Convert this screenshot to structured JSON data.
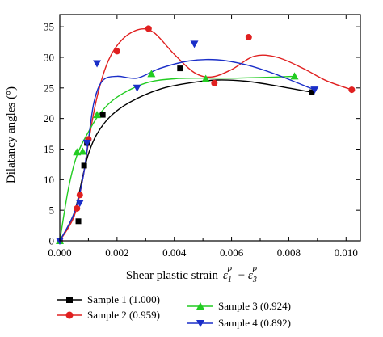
{
  "chart_data": {
    "type": "scatter",
    "xlabel": "Shear plastic strain",
    "xlabel_math": "ε₁ᵖ − ε₃ᵖ",
    "ylabel": "Dilatancy angles (°)",
    "xlim": [
      0.0,
      0.0105
    ],
    "ylim": [
      0,
      37
    ],
    "x_ticks": [
      "0.000",
      "0.002",
      "0.004",
      "0.006",
      "0.008",
      "0.010"
    ],
    "y_ticks": [
      "0",
      "5",
      "10",
      "15",
      "20",
      "25",
      "30",
      "35"
    ],
    "legend_position": "bottom",
    "series": [
      {
        "name": "Sample 1 (1.000)",
        "color": "#000000",
        "marker": "square",
        "points": [
          [
            0.0,
            0.0
          ],
          [
            0.00065,
            3.2
          ],
          [
            0.00085,
            12.3
          ],
          [
            0.00095,
            16.0
          ],
          [
            0.0015,
            20.6
          ],
          [
            0.0042,
            28.2
          ],
          [
            0.0088,
            24.3
          ]
        ],
        "curve": [
          [
            0.0,
            0.0
          ],
          [
            0.0005,
            4.5
          ],
          [
            0.0008,
            10.5
          ],
          [
            0.001,
            14.2
          ],
          [
            0.0013,
            17.5
          ],
          [
            0.0018,
            20.5
          ],
          [
            0.0025,
            22.8
          ],
          [
            0.0035,
            24.8
          ],
          [
            0.0045,
            25.8
          ],
          [
            0.0055,
            26.3
          ],
          [
            0.0065,
            26.1
          ],
          [
            0.0075,
            25.4
          ],
          [
            0.0088,
            24.3
          ]
        ]
      },
      {
        "name": "Sample 2 (0.959)",
        "color": "#e02020",
        "marker": "circle",
        "points": [
          [
            0.0,
            0.0
          ],
          [
            0.0006,
            5.3
          ],
          [
            0.0007,
            7.5
          ],
          [
            0.001,
            16.6
          ],
          [
            0.002,
            31.0
          ],
          [
            0.0031,
            34.7
          ],
          [
            0.0054,
            25.8
          ],
          [
            0.0066,
            33.3
          ],
          [
            0.0102,
            24.7
          ]
        ],
        "curve": [
          [
            0.0,
            0.0
          ],
          [
            0.0005,
            4.0
          ],
          [
            0.0008,
            10.0
          ],
          [
            0.001,
            16.0
          ],
          [
            0.0013,
            23.5
          ],
          [
            0.0017,
            29.5
          ],
          [
            0.0022,
            33.0
          ],
          [
            0.0028,
            34.6
          ],
          [
            0.0033,
            34.0
          ],
          [
            0.004,
            30.5
          ],
          [
            0.0047,
            27.5
          ],
          [
            0.0053,
            26.8
          ],
          [
            0.006,
            28.0
          ],
          [
            0.0068,
            30.2
          ],
          [
            0.0076,
            30.0
          ],
          [
            0.0085,
            28.2
          ],
          [
            0.0093,
            26.2
          ],
          [
            0.0102,
            24.7
          ]
        ]
      },
      {
        "name": "Sample 3 (0.924)",
        "color": "#22cc22",
        "marker": "triangle-up",
        "points": [
          [
            0.0,
            0.0
          ],
          [
            0.0006,
            14.5
          ],
          [
            0.0008,
            14.6
          ],
          [
            0.0013,
            20.6
          ],
          [
            0.0032,
            27.3
          ],
          [
            0.0051,
            26.5
          ],
          [
            0.0082,
            26.9
          ]
        ],
        "curve": [
          [
            0.0,
            0.0
          ],
          [
            0.0003,
            8.5
          ],
          [
            0.0006,
            14.0
          ],
          [
            0.001,
            17.8
          ],
          [
            0.0014,
            20.8
          ],
          [
            0.002,
            23.5
          ],
          [
            0.003,
            25.8
          ],
          [
            0.004,
            26.5
          ],
          [
            0.005,
            26.6
          ],
          [
            0.006,
            26.6
          ],
          [
            0.007,
            26.7
          ],
          [
            0.0082,
            26.9
          ]
        ]
      },
      {
        "name": "Sample 4 (0.892)",
        "color": "#1a2ec8",
        "marker": "triangle-down",
        "points": [
          [
            0.0,
            0.0
          ],
          [
            0.0007,
            6.2
          ],
          [
            0.00095,
            16.0
          ],
          [
            0.0013,
            29.0
          ],
          [
            0.0027,
            25.0
          ],
          [
            0.0047,
            32.2
          ],
          [
            0.0089,
            24.7
          ]
        ],
        "curve": [
          [
            0.0,
            0.0
          ],
          [
            0.0005,
            4.5
          ],
          [
            0.0008,
            10.0
          ],
          [
            0.001,
            16.5
          ],
          [
            0.0012,
            22.8
          ],
          [
            0.0015,
            26.2
          ],
          [
            0.002,
            26.9
          ],
          [
            0.0027,
            26.6
          ],
          [
            0.0035,
            28.2
          ],
          [
            0.0045,
            29.4
          ],
          [
            0.0055,
            29.6
          ],
          [
            0.0065,
            28.8
          ],
          [
            0.0075,
            27.3
          ],
          [
            0.0089,
            24.7
          ]
        ]
      }
    ]
  }
}
